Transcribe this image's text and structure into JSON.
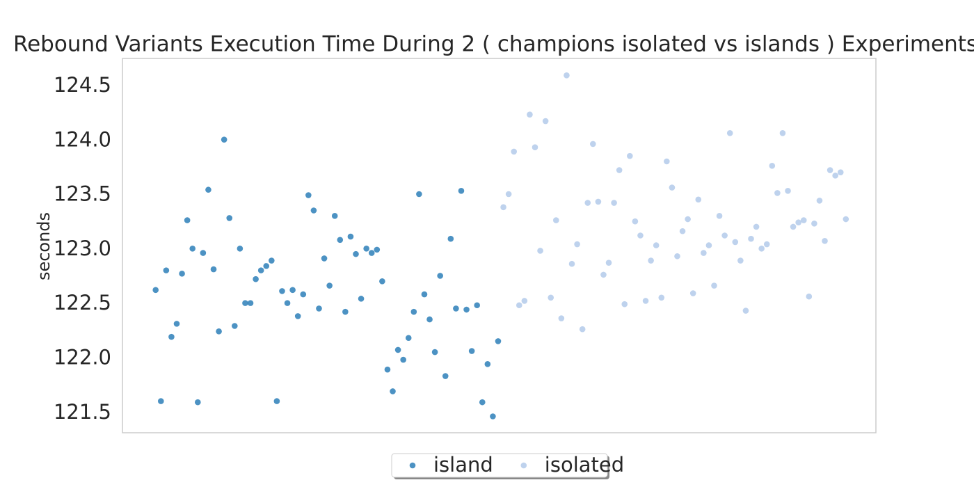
{
  "chart_data": {
    "type": "scatter",
    "title": "Rebound Variants Execution Time During 2  ( champions isolated vs islands ) Experiments",
    "y_label": "seconds",
    "ylim": [
      121.32,
      124.755
    ],
    "yticks": [
      {
        "value": 121.5,
        "label": "121.5"
      },
      {
        "value": 122.0,
        "label": "122.0"
      },
      {
        "value": 122.5,
        "label": "122.5"
      },
      {
        "value": 123.0,
        "label": "123.0"
      },
      {
        "value": 123.5,
        "label": "123.5"
      },
      {
        "value": 124.0,
        "label": "124.0"
      },
      {
        "value": 124.5,
        "label": "124.5"
      }
    ],
    "xlim": [
      -6.3,
      136.7
    ],
    "grid": false,
    "legend": "lower center",
    "series": [
      {
        "name": "island",
        "color": "#1f77b4",
        "x": [
          0,
          1,
          2,
          3,
          4,
          5,
          6,
          7,
          8,
          9,
          10,
          11,
          12,
          13,
          14,
          15,
          16,
          17,
          18,
          19,
          20,
          21,
          22,
          23,
          24,
          25,
          26,
          27,
          28,
          29,
          30,
          31,
          32,
          33,
          34,
          35,
          36,
          37,
          38,
          39,
          40,
          41,
          42,
          43,
          44,
          45,
          46,
          47,
          48,
          49,
          50,
          51,
          52,
          53,
          54,
          55,
          56,
          57,
          58,
          59,
          60,
          61,
          62,
          63,
          64,
          65
        ],
        "values": [
          122.63,
          121.61,
          122.81,
          122.2,
          122.32,
          122.78,
          123.27,
          123.01,
          121.6,
          122.97,
          123.55,
          122.82,
          122.25,
          124.01,
          123.29,
          122.3,
          123.01,
          122.51,
          122.51,
          122.73,
          122.81,
          122.85,
          122.9,
          121.61,
          122.62,
          122.51,
          122.63,
          122.39,
          122.59,
          123.5,
          123.36,
          122.46,
          122.92,
          122.67,
          123.31,
          123.09,
          122.43,
          123.12,
          122.96,
          122.55,
          123.01,
          122.97,
          123.0,
          122.71,
          121.9,
          121.7,
          122.08,
          121.99,
          122.19,
          122.43,
          123.51,
          122.59,
          122.36,
          122.06,
          122.76,
          121.84,
          123.1,
          122.46,
          123.54,
          122.45,
          122.07,
          122.49,
          121.6,
          121.95,
          121.47,
          122.16
        ]
      },
      {
        "name": "isolated",
        "color": "#aec7e8",
        "x": [
          66,
          67,
          68,
          69,
          70,
          71,
          72,
          73,
          74,
          75,
          76,
          77,
          78,
          79,
          80,
          81,
          82,
          83,
          84,
          85,
          86,
          87,
          88,
          89,
          90,
          91,
          92,
          93,
          94,
          95,
          96,
          97,
          98,
          99,
          100,
          101,
          102,
          103,
          104,
          105,
          106,
          107,
          108,
          109,
          110,
          111,
          112,
          113,
          114,
          115,
          116,
          117,
          118,
          119,
          120,
          121,
          122,
          123,
          124,
          125,
          126,
          127,
          128,
          129,
          130,
          131
        ],
        "values": [
          123.39,
          123.51,
          123.9,
          122.49,
          122.53,
          124.24,
          123.94,
          122.99,
          124.18,
          122.56,
          123.27,
          122.37,
          124.6,
          122.87,
          123.05,
          122.27,
          123.43,
          123.97,
          123.44,
          122.77,
          122.88,
          123.43,
          123.73,
          122.5,
          123.86,
          123.26,
          123.13,
          122.53,
          122.9,
          123.04,
          122.56,
          123.81,
          123.57,
          122.94,
          123.17,
          123.28,
          122.6,
          123.46,
          122.97,
          123.04,
          122.67,
          123.31,
          123.13,
          124.07,
          123.07,
          122.9,
          122.44,
          123.1,
          123.21,
          123.01,
          123.05,
          123.77,
          123.52,
          124.07,
          123.54,
          123.21,
          123.25,
          123.27,
          122.57,
          123.24,
          123.45,
          123.08,
          123.73,
          123.68,
          123.71,
          123.28
        ]
      }
    ]
  }
}
